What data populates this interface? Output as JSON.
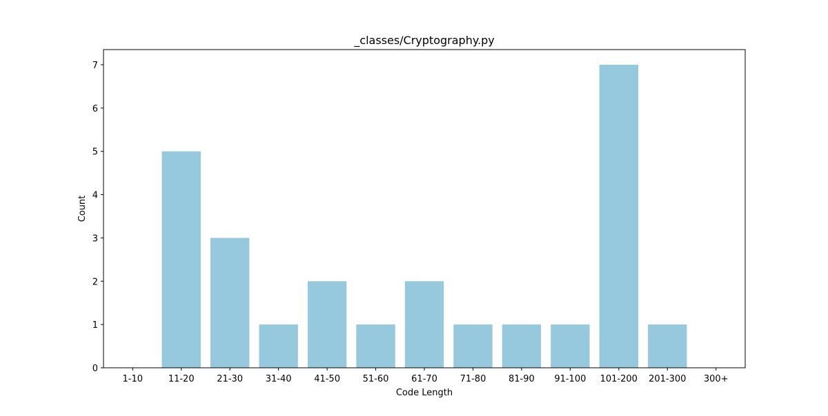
{
  "chart_data": {
    "type": "bar",
    "title": "_classes/Cryptography.py",
    "xlabel": "Code Length",
    "ylabel": "Count",
    "categories": [
      "1-10",
      "11-20",
      "21-30",
      "31-40",
      "41-50",
      "51-60",
      "61-70",
      "71-80",
      "81-90",
      "91-100",
      "101-200",
      "201-300",
      "300+"
    ],
    "values": [
      0,
      5,
      3,
      1,
      2,
      1,
      2,
      1,
      1,
      1,
      7,
      1,
      0
    ],
    "ylim": [
      0,
      7.35
    ],
    "yticks": [
      "0",
      "1",
      "2",
      "3",
      "4",
      "5",
      "6",
      "7"
    ],
    "grid": false,
    "colors": {
      "bar": "#96c9dd",
      "axis": "#000000"
    }
  }
}
